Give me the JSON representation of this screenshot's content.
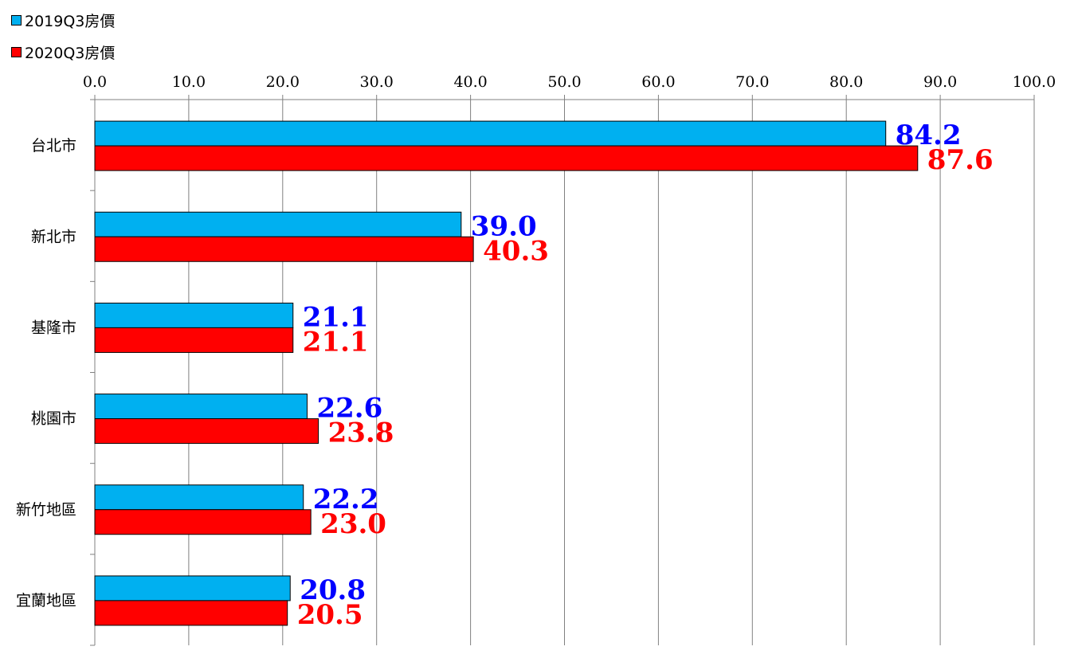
{
  "chart_data": {
    "type": "bar",
    "orientation": "horizontal",
    "categories": [
      "台北市",
      "新北市",
      "基隆市",
      "桃園市",
      "新竹地區",
      "宜蘭地區"
    ],
    "series": [
      {
        "name": "2019Q3房價",
        "color": "#00b0f0",
        "label_color": "#0000ff",
        "values": [
          84.2,
          39.0,
          21.1,
          22.6,
          22.2,
          20.8
        ]
      },
      {
        "name": "2020Q3房價",
        "color": "#ff0000",
        "label_color": "#ff0000",
        "values": [
          87.6,
          40.3,
          21.1,
          23.8,
          23.0,
          20.5
        ]
      }
    ],
    "xlim": [
      0,
      100
    ],
    "x_ticks": [
      "0.0",
      "10.0",
      "20.0",
      "30.0",
      "40.0",
      "50.0",
      "60.0",
      "70.0",
      "80.0",
      "90.0",
      "100.0"
    ],
    "x_axis_position": "top",
    "grid": true,
    "legend_position": "top-left",
    "data_labels": [
      [
        "84.2",
        "87.6"
      ],
      [
        "39.0",
        "40.3"
      ],
      [
        "21.1",
        "21.1"
      ],
      [
        "22.6",
        "23.8"
      ],
      [
        "22.2",
        "23.0"
      ],
      [
        "20.8",
        "20.5"
      ]
    ]
  }
}
